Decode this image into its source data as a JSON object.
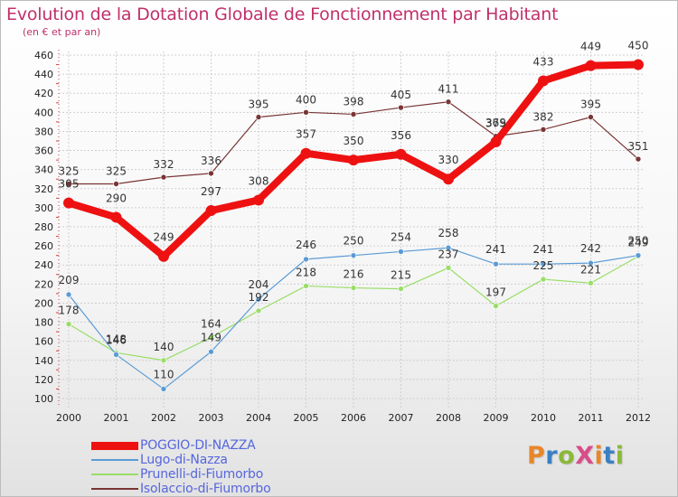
{
  "title": "Evolution de la Dotation Globale de Fonctionnement par Habitant",
  "subtitle": "(en € et par an)",
  "logo_text": "ProXiti",
  "logo_colors": [
    "#e8862a",
    "#3a7fc4",
    "#8ab83a",
    "#d84d8a",
    "#e8862a",
    "#3a7fc4",
    "#8ab83a"
  ],
  "chart_data": {
    "type": "line",
    "title": "Evolution de la Dotation Globale de Fonctionnement par Habitant",
    "subtitle": "(en € et par an)",
    "xlabel": "",
    "ylabel": "",
    "ylim": [
      100,
      460
    ],
    "ytick_step": 20,
    "grid": true,
    "legend_position": "bottom-left",
    "x": [
      "2000",
      "2001",
      "2002",
      "2003",
      "2004",
      "2005",
      "2006",
      "2007",
      "2008",
      "2009",
      "2010",
      "2011",
      "2012"
    ],
    "series": [
      {
        "name": "POGGIO-DI-NAZZA",
        "color": "#ee1111",
        "emphasis": true,
        "values": [
          305,
          290,
          249,
          297,
          308,
          357,
          350,
          356,
          330,
          369,
          433,
          449,
          450
        ]
      },
      {
        "name": "Lugo-di-Nazza",
        "color": "#5b9bd5",
        "values": [
          209,
          146,
          110,
          149,
          204,
          246,
          250,
          254,
          258,
          241,
          241,
          242,
          250
        ]
      },
      {
        "name": "Prunelli-di-Fiumorbo",
        "color": "#99dd66",
        "values": [
          178,
          148,
          140,
          164,
          192,
          218,
          216,
          215,
          237,
          197,
          225,
          221,
          249
        ]
      },
      {
        "name": "Isolaccio-di-Fiumorbo",
        "color": "#7a3535",
        "values": [
          325,
          325,
          332,
          336,
          395,
          400,
          398,
          405,
          411,
          375,
          382,
          395,
          351
        ]
      }
    ]
  }
}
